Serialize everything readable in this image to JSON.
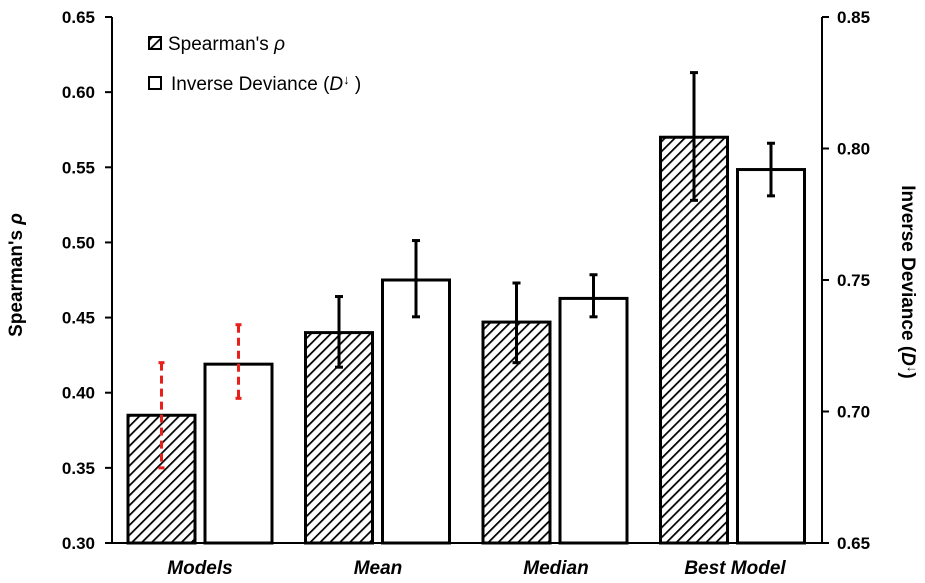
{
  "chart_data": {
    "type": "bar",
    "categories": [
      "Models",
      "Mean",
      "Median",
      "Best Model"
    ],
    "series": [
      {
        "name": "Spearman's ρ",
        "axis": "left",
        "pattern": "hatched",
        "values": [
          0.385,
          0.44,
          0.447,
          0.57
        ],
        "errors": [
          [
            0.35,
            0.42
          ],
          [
            0.417,
            0.464
          ],
          [
            0.42,
            0.473
          ],
          [
            0.528,
            0.613
          ]
        ],
        "error_style": [
          "dashed-red",
          "solid",
          "solid",
          "solid"
        ]
      },
      {
        "name": "Inverse Deviance (D↓)",
        "axis": "right",
        "pattern": "white",
        "values": [
          0.718,
          0.75,
          0.743,
          0.792
        ],
        "errors": [
          [
            0.705,
            0.733
          ],
          [
            0.736,
            0.765
          ],
          [
            0.736,
            0.752
          ],
          [
            0.782,
            0.802
          ]
        ],
        "error_style": [
          "dashed-red",
          "solid",
          "solid",
          "solid"
        ]
      }
    ],
    "y_left": {
      "label_main": "Spearman's",
      "label_symbol": "ρ",
      "ylim": [
        0.3,
        0.65
      ],
      "ticks": [
        "0.30",
        "0.35",
        "0.40",
        "0.45",
        "0.50",
        "0.55",
        "0.60",
        "0.65"
      ]
    },
    "y_right": {
      "label_main": "Inverse Deviance (",
      "label_symbol": "D",
      "label_arrow": "↓",
      "label_close": ")",
      "ylim": [
        0.65,
        0.85
      ],
      "ticks": [
        "0.65",
        "0.70",
        "0.75",
        "0.80",
        "0.85"
      ]
    },
    "legend": {
      "placement": "top-left",
      "items": [
        {
          "text_main": "Spearman's ",
          "text_symbol": "ρ",
          "text_arrow": "",
          "text_close": ""
        },
        {
          "text_main": "Inverse Deviance (",
          "text_symbol": "D",
          "text_arrow": "↓",
          "text_close": " )"
        }
      ]
    },
    "grid": false,
    "colors": {
      "bar_stroke": "#000000",
      "hatch_line": "#000000",
      "bar_fill": "#ffffff",
      "error_highlight": "#e8201c"
    }
  }
}
